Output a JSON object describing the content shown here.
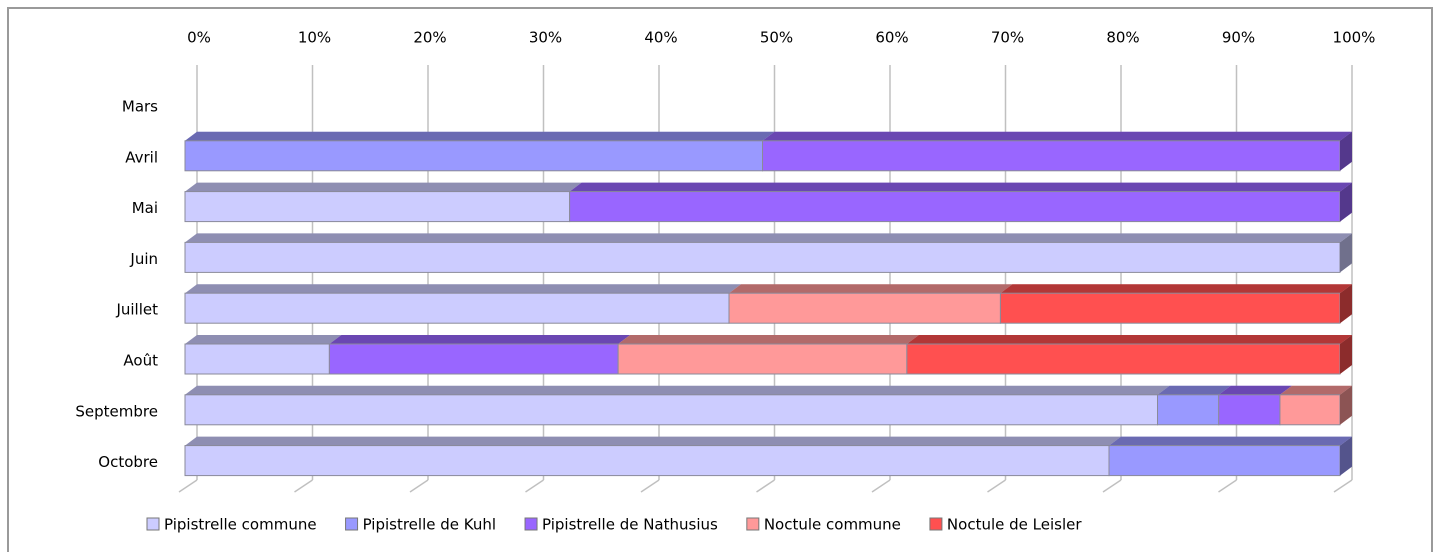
{
  "chart_data": {
    "type": "stacked-bar-horizontal",
    "categories": [
      "Mars",
      "Avril",
      "Mai",
      "Juin",
      "Juillet",
      "Août",
      "Septembre",
      "Octobre"
    ],
    "series": [
      {
        "name": "Pipistrelle commune",
        "color": "#ccccff",
        "values": [
          0,
          0,
          33.3,
          100,
          47.1,
          12.5,
          84.2,
          80
        ]
      },
      {
        "name": "Pipistrelle de Kuhl",
        "color": "#9999ff",
        "values": [
          0,
          50,
          0,
          0,
          0,
          0,
          5.3,
          20
        ]
      },
      {
        "name": "Pipistrelle de Nathusius",
        "color": "#9966ff",
        "values": [
          0,
          50,
          66.7,
          0,
          0,
          25,
          5.3,
          0
        ]
      },
      {
        "name": "Noctule commune",
        "color": "#ff9999",
        "values": [
          0,
          0,
          0,
          0,
          23.5,
          25,
          5.2,
          0
        ]
      },
      {
        "name": "Noctule de Leisler",
        "color": "#ff5050",
        "values": [
          0,
          0,
          0,
          0,
          29.4,
          37.5,
          0,
          0
        ]
      }
    ],
    "xlim": [
      0,
      100
    ],
    "xticks": [
      {
        "value": 0,
        "label": "0%"
      },
      {
        "value": 10,
        "label": "10%"
      },
      {
        "value": 20,
        "label": "20%"
      },
      {
        "value": 30,
        "label": "30%"
      },
      {
        "value": 40,
        "label": "40%"
      },
      {
        "value": 50,
        "label": "50%"
      },
      {
        "value": 60,
        "label": "60%"
      },
      {
        "value": 70,
        "label": "70%"
      },
      {
        "value": 80,
        "label": "80%"
      },
      {
        "value": 90,
        "label": "90%"
      },
      {
        "value": 100,
        "label": "100%"
      }
    ],
    "grid": true,
    "legend": "bottom"
  }
}
